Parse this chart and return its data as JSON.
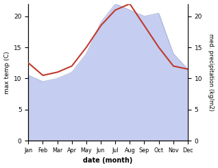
{
  "months": [
    "Jan",
    "Feb",
    "Mar",
    "Apr",
    "May",
    "Jun",
    "Jul",
    "Aug",
    "Sep",
    "Oct",
    "Nov",
    "Dec"
  ],
  "max_temp": [
    12.5,
    10.5,
    11.0,
    12.0,
    15.0,
    18.5,
    21.0,
    22.0,
    18.5,
    15.0,
    12.0,
    11.5
  ],
  "precipitation": [
    10.5,
    9.5,
    10.0,
    11.0,
    14.0,
    19.0,
    22.0,
    21.0,
    20.0,
    20.5,
    14.0,
    11.5
  ],
  "temp_color": "#c0392b",
  "precip_fill_color": "#c5cdf0",
  "precip_line_color": "#9099cc",
  "temp_ylim": [
    0,
    22
  ],
  "precip_ylim": [
    0,
    22
  ],
  "temp_yticks": [
    0,
    5,
    10,
    15,
    20
  ],
  "precip_yticks": [
    0,
    5,
    10,
    15,
    20
  ],
  "xlabel": "date (month)",
  "ylabel_left": "max temp (C)",
  "ylabel_right": "med. precipitation (kg/m2)",
  "background_color": "#ffffff",
  "fig_width": 3.18,
  "fig_height": 2.45,
  "dpi": 100
}
